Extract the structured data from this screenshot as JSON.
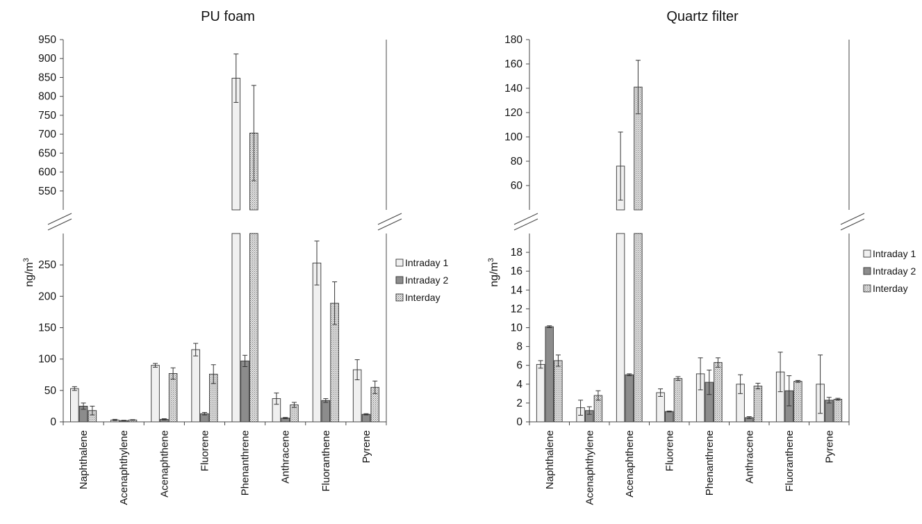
{
  "chart_data": [
    {
      "type": "bar",
      "title": "PU foam",
      "ylabel": "ng/m",
      "ylabel_sup": "3",
      "categories": [
        "Naphthalene",
        "Acenaphthylene",
        "Acenaphthene",
        "Fluorene",
        "Phenanthrene",
        "Anthracene",
        "Fluoranthene",
        "Pyrene"
      ],
      "series": [
        {
          "name": "Intraday 1",
          "fill": "#f0f0f0",
          "pattern": "none",
          "values": [
            53,
            3,
            90,
            115,
            848,
            37,
            253,
            83
          ],
          "errors": [
            3,
            1,
            3,
            10,
            64,
            9,
            35,
            16
          ]
        },
        {
          "name": "Intraday 2",
          "fill": "#8c8c8c",
          "pattern": "none",
          "values": [
            25,
            2,
            4,
            13,
            97,
            6,
            34,
            12
          ],
          "errors": [
            5,
            0.5,
            1,
            2,
            9,
            1,
            3,
            1
          ]
        },
        {
          "name": "Interday",
          "fill": "#d9d9d9",
          "pattern": "dots",
          "values": [
            18,
            3,
            77,
            76,
            703,
            27,
            189,
            55
          ],
          "errors": [
            7,
            0.5,
            9,
            15,
            126,
            4,
            34,
            10
          ]
        }
      ],
      "axis_break": true,
      "lower_range": [
        0,
        300
      ],
      "lower_ticks": [
        0,
        50,
        100,
        150,
        200,
        250
      ],
      "upper_range": [
        500,
        950
      ],
      "upper_ticks": [
        550,
        600,
        650,
        700,
        750,
        800,
        850,
        900,
        950
      ],
      "legend": "right"
    },
    {
      "type": "bar",
      "title": "Quartz filter",
      "ylabel": "ng/m",
      "ylabel_sup": "3",
      "categories": [
        "Naphthalene",
        "Acenaphthylene",
        "Acenaphthene",
        "Fluorene",
        "Phenanthrene",
        "Anthracene",
        "Fluoranthene",
        "Pyrene"
      ],
      "series": [
        {
          "name": "Intraday 1",
          "fill": "#f0f0f0",
          "pattern": "none",
          "values": [
            6.1,
            1.5,
            76,
            3.1,
            5.1,
            4.0,
            5.3,
            4.0
          ],
          "errors": [
            0.4,
            0.8,
            28,
            0.4,
            1.7,
            1.0,
            2.1,
            3.1
          ]
        },
        {
          "name": "Intraday 2",
          "fill": "#8c8c8c",
          "pattern": "none",
          "values": [
            10.1,
            1.2,
            5.0,
            1.1,
            4.2,
            0.45,
            3.3,
            2.3
          ],
          "errors": [
            0.1,
            0.4,
            0.1,
            0.05,
            1.3,
            0.1,
            1.6,
            0.3
          ]
        },
        {
          "name": "Interday",
          "fill": "#d9d9d9",
          "pattern": "dots",
          "values": [
            6.5,
            2.8,
            141,
            4.6,
            6.3,
            3.8,
            4.3,
            2.4
          ],
          "errors": [
            0.6,
            0.5,
            22,
            0.2,
            0.5,
            0.3,
            0.1,
            0.1
          ]
        }
      ],
      "axis_break": true,
      "lower_range": [
        0,
        20
      ],
      "lower_ticks": [
        0,
        2,
        4,
        6,
        8,
        10,
        12,
        14,
        16,
        18
      ],
      "upper_range": [
        40,
        180
      ],
      "upper_ticks": [
        60,
        80,
        100,
        120,
        140,
        160,
        180
      ],
      "legend": "right"
    }
  ]
}
